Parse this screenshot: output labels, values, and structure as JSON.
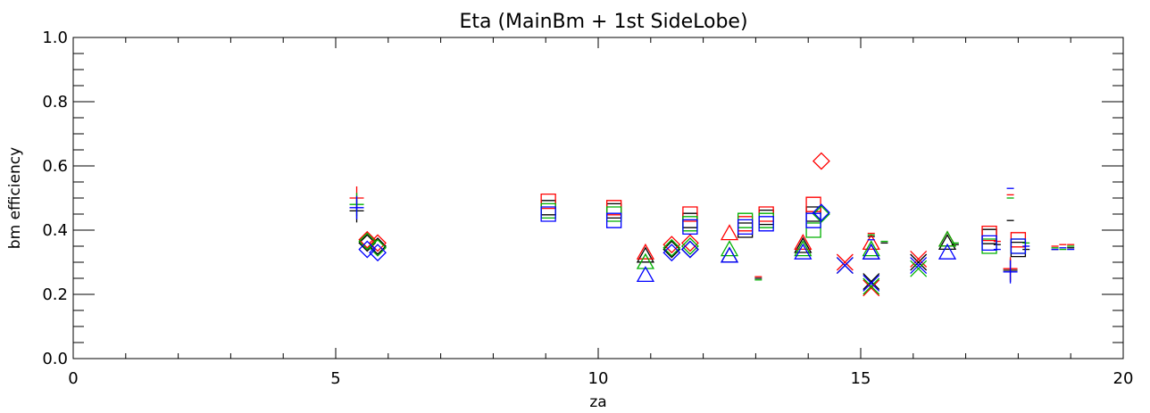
{
  "chart_data": {
    "type": "scatter",
    "title": "Eta (MainBm + 1st SideLobe)",
    "xlabel": "za",
    "ylabel": "bm efficiency",
    "xlim": [
      0,
      20
    ],
    "ylim": [
      0,
      1.0
    ],
    "x_ticks": [
      0,
      5,
      10,
      15,
      20
    ],
    "x_tick_labels": [
      "0",
      "5",
      "10",
      "15",
      "20"
    ],
    "y_ticks": [
      0,
      0.2,
      0.4,
      0.6,
      0.8,
      1.0
    ],
    "y_tick_labels": [
      "0.0",
      "0.2",
      "0.4",
      "0.6",
      "0.8",
      "1.0"
    ],
    "grid": false,
    "colors": {
      "black": "#000000",
      "red": "#ff0000",
      "green": "#00b000",
      "blue": "#0000ff"
    },
    "series": [
      {
        "color": "black",
        "points": [
          {
            "x": 5.4,
            "y": 0.46,
            "m": "plus"
          },
          {
            "x": 5.6,
            "y": 0.36,
            "m": "diamond"
          },
          {
            "x": 5.8,
            "y": 0.35,
            "m": "diamond"
          },
          {
            "x": 9.05,
            "y": 0.47,
            "m": "square"
          },
          {
            "x": 10.3,
            "y": 0.46,
            "m": "square"
          },
          {
            "x": 10.9,
            "y": 0.32,
            "m": "triangle"
          },
          {
            "x": 11.4,
            "y": 0.34,
            "m": "diamond"
          },
          {
            "x": 11.75,
            "y": 0.43,
            "m": "square"
          },
          {
            "x": 11.75,
            "y": 0.34,
            "m": "diamond"
          },
          {
            "x": 12.5,
            "y": 0.32,
            "m": "triangle"
          },
          {
            "x": 12.8,
            "y": 0.4,
            "m": "square"
          },
          {
            "x": 13.05,
            "y": 0.25,
            "m": "dash"
          },
          {
            "x": 13.2,
            "y": 0.44,
            "m": "square"
          },
          {
            "x": 13.9,
            "y": 0.35,
            "m": "triangle"
          },
          {
            "x": 14.1,
            "y": 0.45,
            "m": "square"
          },
          {
            "x": 14.7,
            "y": 0.29,
            "m": "x"
          },
          {
            "x": 15.2,
            "y": 0.24,
            "m": "x"
          },
          {
            "x": 15.2,
            "y": 0.38,
            "m": "dash"
          },
          {
            "x": 15.2,
            "y": 0.33,
            "m": "triangle"
          },
          {
            "x": 15.45,
            "y": 0.36,
            "m": "dash"
          },
          {
            "x": 16.1,
            "y": 0.3,
            "m": "x"
          },
          {
            "x": 16.65,
            "y": 0.36,
            "m": "triangle"
          },
          {
            "x": 16.8,
            "y": 0.355,
            "m": "dash"
          },
          {
            "x": 17.45,
            "y": 0.38,
            "m": "square"
          },
          {
            "x": 17.6,
            "y": 0.355,
            "m": "dash"
          },
          {
            "x": 17.85,
            "y": 0.43,
            "m": "dash"
          },
          {
            "x": 17.85,
            "y": 0.275,
            "m": "plus"
          },
          {
            "x": 18.0,
            "y": 0.34,
            "m": "square"
          },
          {
            "x": 18.15,
            "y": 0.34,
            "m": "dash"
          },
          {
            "x": 18.7,
            "y": 0.34,
            "m": "dash"
          },
          {
            "x": 19.0,
            "y": 0.345,
            "m": "dash"
          }
        ]
      },
      {
        "color": "red",
        "points": [
          {
            "x": 5.4,
            "y": 0.5,
            "m": "plus"
          },
          {
            "x": 5.6,
            "y": 0.37,
            "m": "diamond"
          },
          {
            "x": 5.8,
            "y": 0.36,
            "m": "diamond"
          },
          {
            "x": 9.05,
            "y": 0.49,
            "m": "square"
          },
          {
            "x": 10.3,
            "y": 0.47,
            "m": "square"
          },
          {
            "x": 10.9,
            "y": 0.33,
            "m": "triangle"
          },
          {
            "x": 11.4,
            "y": 0.355,
            "m": "diamond"
          },
          {
            "x": 11.75,
            "y": 0.45,
            "m": "square"
          },
          {
            "x": 11.75,
            "y": 0.36,
            "m": "diamond"
          },
          {
            "x": 12.5,
            "y": 0.39,
            "m": "triangle"
          },
          {
            "x": 12.8,
            "y": 0.42,
            "m": "square"
          },
          {
            "x": 13.05,
            "y": 0.255,
            "m": "dash"
          },
          {
            "x": 13.2,
            "y": 0.45,
            "m": "square"
          },
          {
            "x": 13.9,
            "y": 0.36,
            "m": "triangle"
          },
          {
            "x": 14.1,
            "y": 0.48,
            "m": "square"
          },
          {
            "x": 14.25,
            "y": 0.615,
            "m": "diamond"
          },
          {
            "x": 14.7,
            "y": 0.3,
            "m": "x"
          },
          {
            "x": 15.2,
            "y": 0.22,
            "m": "x"
          },
          {
            "x": 15.2,
            "y": 0.39,
            "m": "dash"
          },
          {
            "x": 15.2,
            "y": 0.36,
            "m": "triangle"
          },
          {
            "x": 16.1,
            "y": 0.31,
            "m": "x"
          },
          {
            "x": 16.65,
            "y": 0.37,
            "m": "triangle"
          },
          {
            "x": 17.45,
            "y": 0.39,
            "m": "square"
          },
          {
            "x": 17.6,
            "y": 0.365,
            "m": "dash"
          },
          {
            "x": 17.85,
            "y": 0.51,
            "m": "dash"
          },
          {
            "x": 17.85,
            "y": 0.28,
            "m": "plus"
          },
          {
            "x": 18.0,
            "y": 0.37,
            "m": "square"
          },
          {
            "x": 18.7,
            "y": 0.35,
            "m": "dash"
          },
          {
            "x": 18.85,
            "y": 0.355,
            "m": "dash"
          },
          {
            "x": 19.0,
            "y": 0.355,
            "m": "dash"
          }
        ]
      },
      {
        "color": "green",
        "points": [
          {
            "x": 5.4,
            "y": 0.48,
            "m": "plus"
          },
          {
            "x": 5.6,
            "y": 0.365,
            "m": "diamond"
          },
          {
            "x": 5.8,
            "y": 0.345,
            "m": "diamond"
          },
          {
            "x": 9.05,
            "y": 0.46,
            "m": "square"
          },
          {
            "x": 10.3,
            "y": 0.45,
            "m": "square"
          },
          {
            "x": 10.9,
            "y": 0.3,
            "m": "triangle"
          },
          {
            "x": 11.4,
            "y": 0.345,
            "m": "diamond"
          },
          {
            "x": 11.75,
            "y": 0.42,
            "m": "square"
          },
          {
            "x": 11.75,
            "y": 0.35,
            "m": "diamond"
          },
          {
            "x": 12.5,
            "y": 0.34,
            "m": "triangle"
          },
          {
            "x": 12.8,
            "y": 0.43,
            "m": "square"
          },
          {
            "x": 13.05,
            "y": 0.245,
            "m": "dash"
          },
          {
            "x": 13.2,
            "y": 0.43,
            "m": "square"
          },
          {
            "x": 13.9,
            "y": 0.34,
            "m": "triangle"
          },
          {
            "x": 14.1,
            "y": 0.4,
            "m": "square"
          },
          {
            "x": 14.25,
            "y": 0.45,
            "m": "diamond"
          },
          {
            "x": 15.2,
            "y": 0.225,
            "m": "x"
          },
          {
            "x": 15.2,
            "y": 0.385,
            "m": "dash"
          },
          {
            "x": 15.2,
            "y": 0.34,
            "m": "triangle"
          },
          {
            "x": 15.45,
            "y": 0.365,
            "m": "dash"
          },
          {
            "x": 16.1,
            "y": 0.28,
            "m": "x"
          },
          {
            "x": 16.65,
            "y": 0.37,
            "m": "triangle"
          },
          {
            "x": 16.8,
            "y": 0.36,
            "m": "dash"
          },
          {
            "x": 17.45,
            "y": 0.35,
            "m": "square"
          },
          {
            "x": 17.85,
            "y": 0.5,
            "m": "dash"
          },
          {
            "x": 18.0,
            "y": 0.35,
            "m": "square"
          },
          {
            "x": 18.15,
            "y": 0.36,
            "m": "dash"
          },
          {
            "x": 18.7,
            "y": 0.345,
            "m": "dash"
          },
          {
            "x": 18.85,
            "y": 0.34,
            "m": "dash"
          },
          {
            "x": 19.0,
            "y": 0.35,
            "m": "dash"
          }
        ]
      },
      {
        "color": "blue",
        "points": [
          {
            "x": 5.4,
            "y": 0.47,
            "m": "plus"
          },
          {
            "x": 5.6,
            "y": 0.34,
            "m": "diamond"
          },
          {
            "x": 5.8,
            "y": 0.33,
            "m": "diamond"
          },
          {
            "x": 9.05,
            "y": 0.45,
            "m": "square"
          },
          {
            "x": 10.3,
            "y": 0.43,
            "m": "square"
          },
          {
            "x": 10.9,
            "y": 0.26,
            "m": "triangle"
          },
          {
            "x": 11.4,
            "y": 0.33,
            "m": "diamond"
          },
          {
            "x": 11.75,
            "y": 0.41,
            "m": "square"
          },
          {
            "x": 11.75,
            "y": 0.34,
            "m": "diamond"
          },
          {
            "x": 12.5,
            "y": 0.32,
            "m": "triangle"
          },
          {
            "x": 12.8,
            "y": 0.41,
            "m": "square"
          },
          {
            "x": 13.2,
            "y": 0.42,
            "m": "square"
          },
          {
            "x": 13.9,
            "y": 0.33,
            "m": "triangle"
          },
          {
            "x": 14.1,
            "y": 0.43,
            "m": "square"
          },
          {
            "x": 14.25,
            "y": 0.455,
            "m": "diamond"
          },
          {
            "x": 14.7,
            "y": 0.29,
            "m": "x"
          },
          {
            "x": 15.2,
            "y": 0.235,
            "m": "x"
          },
          {
            "x": 15.2,
            "y": 0.37,
            "m": "dash"
          },
          {
            "x": 15.2,
            "y": 0.33,
            "m": "triangle"
          },
          {
            "x": 16.1,
            "y": 0.29,
            "m": "x"
          },
          {
            "x": 16.65,
            "y": 0.33,
            "m": "triangle"
          },
          {
            "x": 17.45,
            "y": 0.36,
            "m": "square"
          },
          {
            "x": 17.6,
            "y": 0.34,
            "m": "dash"
          },
          {
            "x": 17.85,
            "y": 0.53,
            "m": "dash"
          },
          {
            "x": 17.85,
            "y": 0.27,
            "m": "plus"
          },
          {
            "x": 18.0,
            "y": 0.35,
            "m": "square"
          },
          {
            "x": 18.15,
            "y": 0.35,
            "m": "dash"
          },
          {
            "x": 18.7,
            "y": 0.34,
            "m": "dash"
          },
          {
            "x": 18.85,
            "y": 0.345,
            "m": "dash"
          },
          {
            "x": 19.0,
            "y": 0.34,
            "m": "dash"
          }
        ]
      }
    ]
  }
}
